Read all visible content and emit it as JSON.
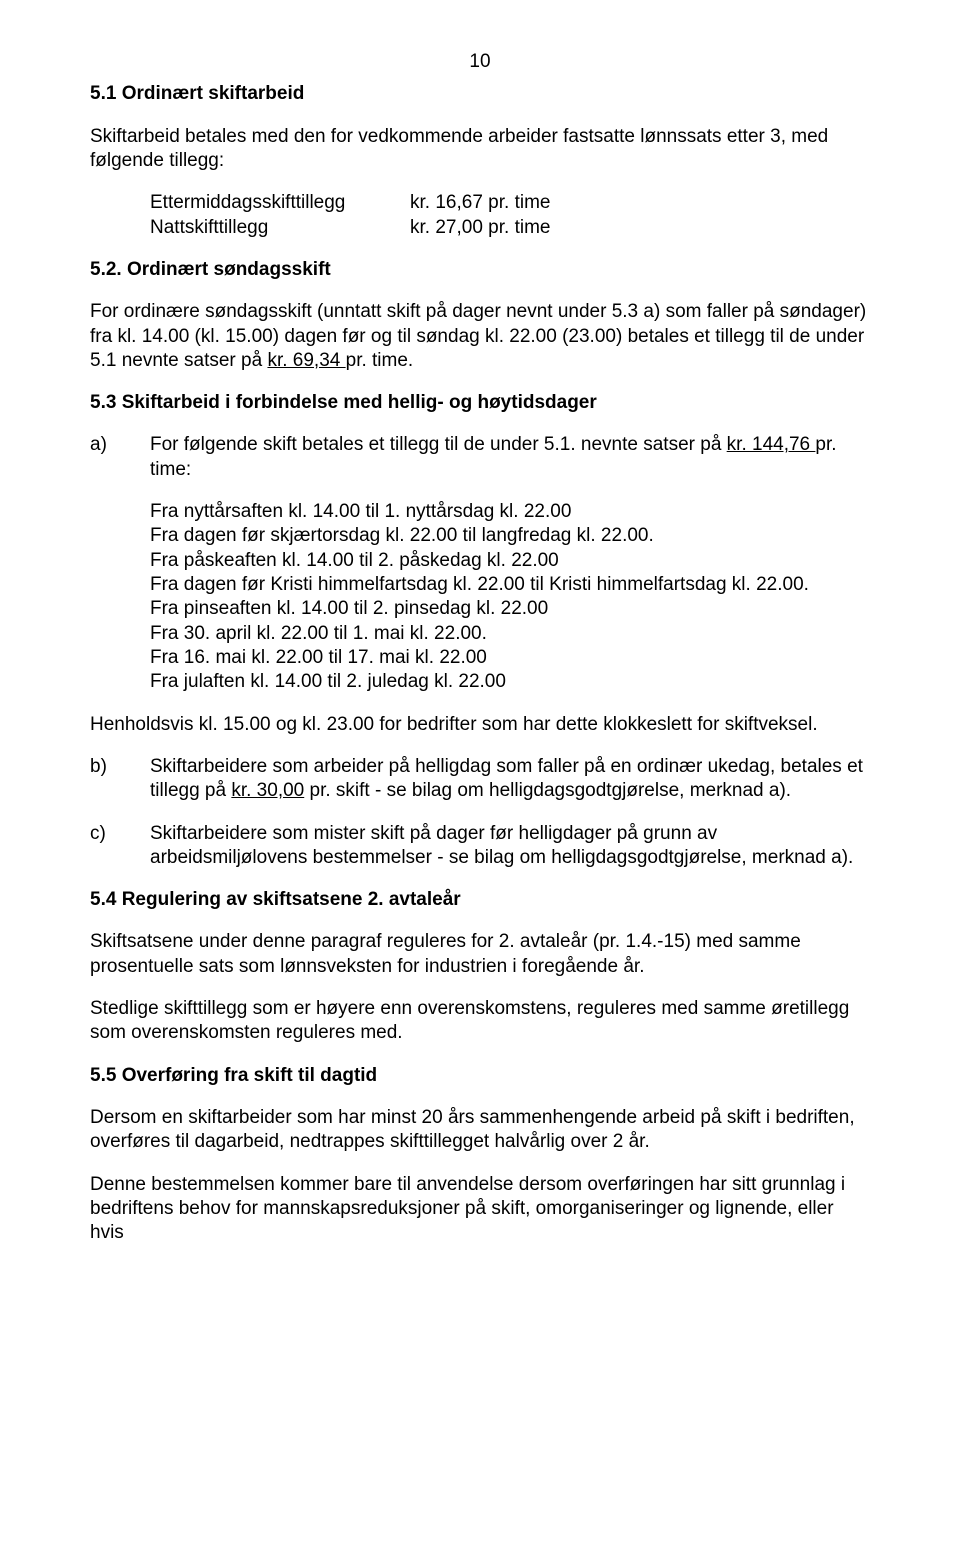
{
  "pageNumber": "10",
  "s51": {
    "heading": "5.1 Ordinært skiftarbeid",
    "intro": "Skiftarbeid betales med den for vedkommende arbeider fastsatte lønnssats etter 3, med følgende tillegg:",
    "rows": [
      {
        "label": "Ettermiddagsskifttillegg",
        "value": "kr.  16,67  pr. time"
      },
      {
        "label": "Nattskifttillegg",
        "value": "kr.  27,00  pr. time"
      }
    ]
  },
  "s52": {
    "heading": "5.2. Ordinært søndagsskift",
    "body_pre": "For ordinære søndagsskift (unntatt skift på dager nevnt under 5.3 a) som faller på søndager) fra kl. 14.00 (kl. 15.00) dagen før og til søndag kl. 22.00 (23.00) betales et tillegg til de under 5.1 nevnte satser på ",
    "underlined": "kr.  69,34 ",
    "body_post": " pr. time."
  },
  "s53": {
    "heading": "5.3 Skiftarbeid i forbindelse med hellig- og høytidsdager",
    "a": {
      "marker": "a)",
      "pre": " For følgende skift betales et tillegg til de under 5.1. nevnte satser på ",
      "underlined": "kr.  144,76  ",
      "post": "pr. time:",
      "lines": [
        "Fra nyttårsaften kl. 14.00 til 1. nyttårsdag kl. 22.00",
        "Fra dagen før skjærtorsdag kl. 22.00 til langfredag kl. 22.00.",
        "Fra påskeaften kl. 14.00 til 2. påskedag kl. 22.00",
        "Fra dagen før Kristi himmelfartsdag kl. 22.00 til Kristi himmelfartsdag kl. 22.00.",
        "Fra pinseaften kl. 14.00 til 2. pinsedag kl. 22.00",
        "Fra 30. april kl. 22.00 til 1. mai kl. 22.00.",
        "Fra 16. mai kl. 22.00 til 17. mai kl. 22.00",
        "Fra julaften kl. 14.00 til 2. juledag kl. 22.00"
      ]
    },
    "hhv": "Henholdsvis kl. 15.00 og kl. 23.00 for bedrifter som har dette klokkeslett for skiftveksel.",
    "b": {
      "marker": "b)",
      "pre": "Skiftarbeidere som arbeider på helligdag som faller på en ordinær ukedag, betales et tillegg på ",
      "underlined": "kr.  30,00",
      "post": " pr. skift - se bilag om helligdagsgodtgjørelse, merknad a)."
    },
    "c": {
      "marker": "c)",
      "text": "Skiftarbeidere som mister skift på dager før helligdager på grunn av arbeidsmiljølovens bestemmelser - se bilag om helligdagsgodtgjørelse, merknad a)."
    }
  },
  "s54": {
    "heading": "5.4 Regulering av skiftsatsene 2. avtaleår",
    "p1": "Skiftsatsene under denne paragraf reguleres for 2. avtaleår (pr. 1.4.-15) med samme prosentuelle sats som lønnsveksten for industrien i foregående år.",
    "p2": "Stedlige skifttillegg som er høyere enn overenskomstens, reguleres med samme øretillegg som overenskomsten reguleres med."
  },
  "s55": {
    "heading": "5.5 Overføring fra skift til dagtid",
    "p1": "Dersom en skiftarbeider som har minst 20 års sammenhengende arbeid på skift i bedriften, overføres til dagarbeid, nedtrappes skifttillegget halvårlig over 2 år.",
    "p2": "Denne bestemmelsen kommer bare til anvendelse dersom overføringen har sitt grunnlag i bedriftens behov for mannskapsreduksjoner på skift, omorganiseringer og lignende, eller hvis"
  }
}
